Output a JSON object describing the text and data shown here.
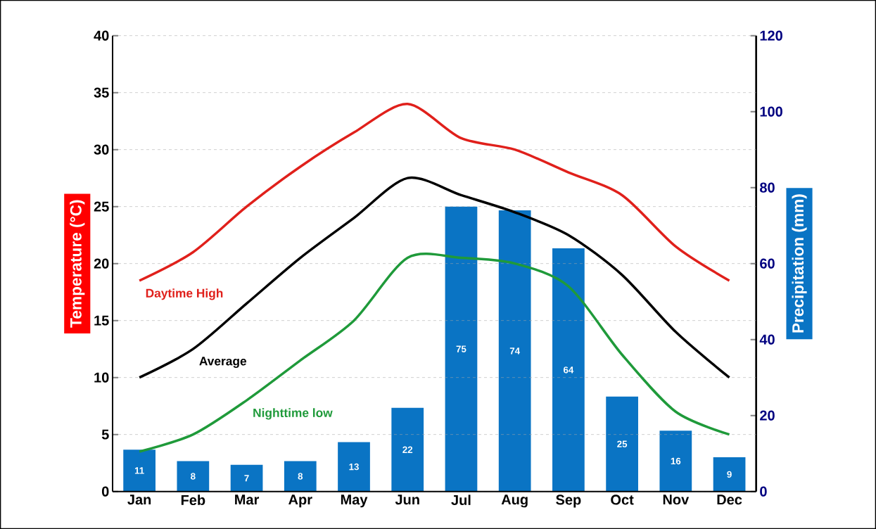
{
  "chart_data": {
    "type": "bar",
    "categories": [
      "Jan",
      "Feb",
      "Mar",
      "Apr",
      "May",
      "Jun",
      "Jul",
      "Aug",
      "Sep",
      "Oct",
      "Nov",
      "Dec"
    ],
    "ylabel": "Temperature (°C)",
    "y2label": "Precipitation (mm)",
    "series": [
      {
        "axis": "y2",
        "color": "#0a74c4",
        "values": [
          11,
          8,
          7,
          8,
          13,
          22,
          75,
          74,
          64,
          25,
          16,
          9
        ],
        "value_labels": [
          "11",
          "8",
          "7",
          "8",
          "13",
          "22",
          "75",
          "74",
          "64",
          "25",
          "16",
          "9"
        ]
      },
      {
        "type": "line",
        "name": "Daytime High",
        "color": "#e0201b",
        "values": [
          18.5,
          21,
          25,
          28.5,
          31.5,
          34,
          31,
          30,
          28,
          26,
          21.5,
          18.5
        ]
      },
      {
        "type": "line",
        "name": "Average",
        "color": "#000000",
        "values": [
          10,
          12.5,
          16.5,
          20.5,
          24,
          27.5,
          26,
          24.5,
          22.5,
          19,
          14,
          10
        ]
      },
      {
        "type": "line",
        "name": "Nighttime low",
        "color": "#1f9a3a",
        "values": [
          3.5,
          5,
          8,
          11.5,
          15,
          20.5,
          20.5,
          20,
          18,
          12,
          7,
          5
        ]
      }
    ],
    "ylim": [
      0,
      40
    ],
    "yticks": [
      0,
      5,
      10,
      15,
      20,
      25,
      30,
      35,
      40
    ],
    "y2lim": [
      0,
      120
    ],
    "y2ticks": [
      0,
      20,
      40,
      60,
      80,
      100,
      120
    ],
    "grid": "y",
    "line_style": "solid",
    "marker": "none"
  }
}
